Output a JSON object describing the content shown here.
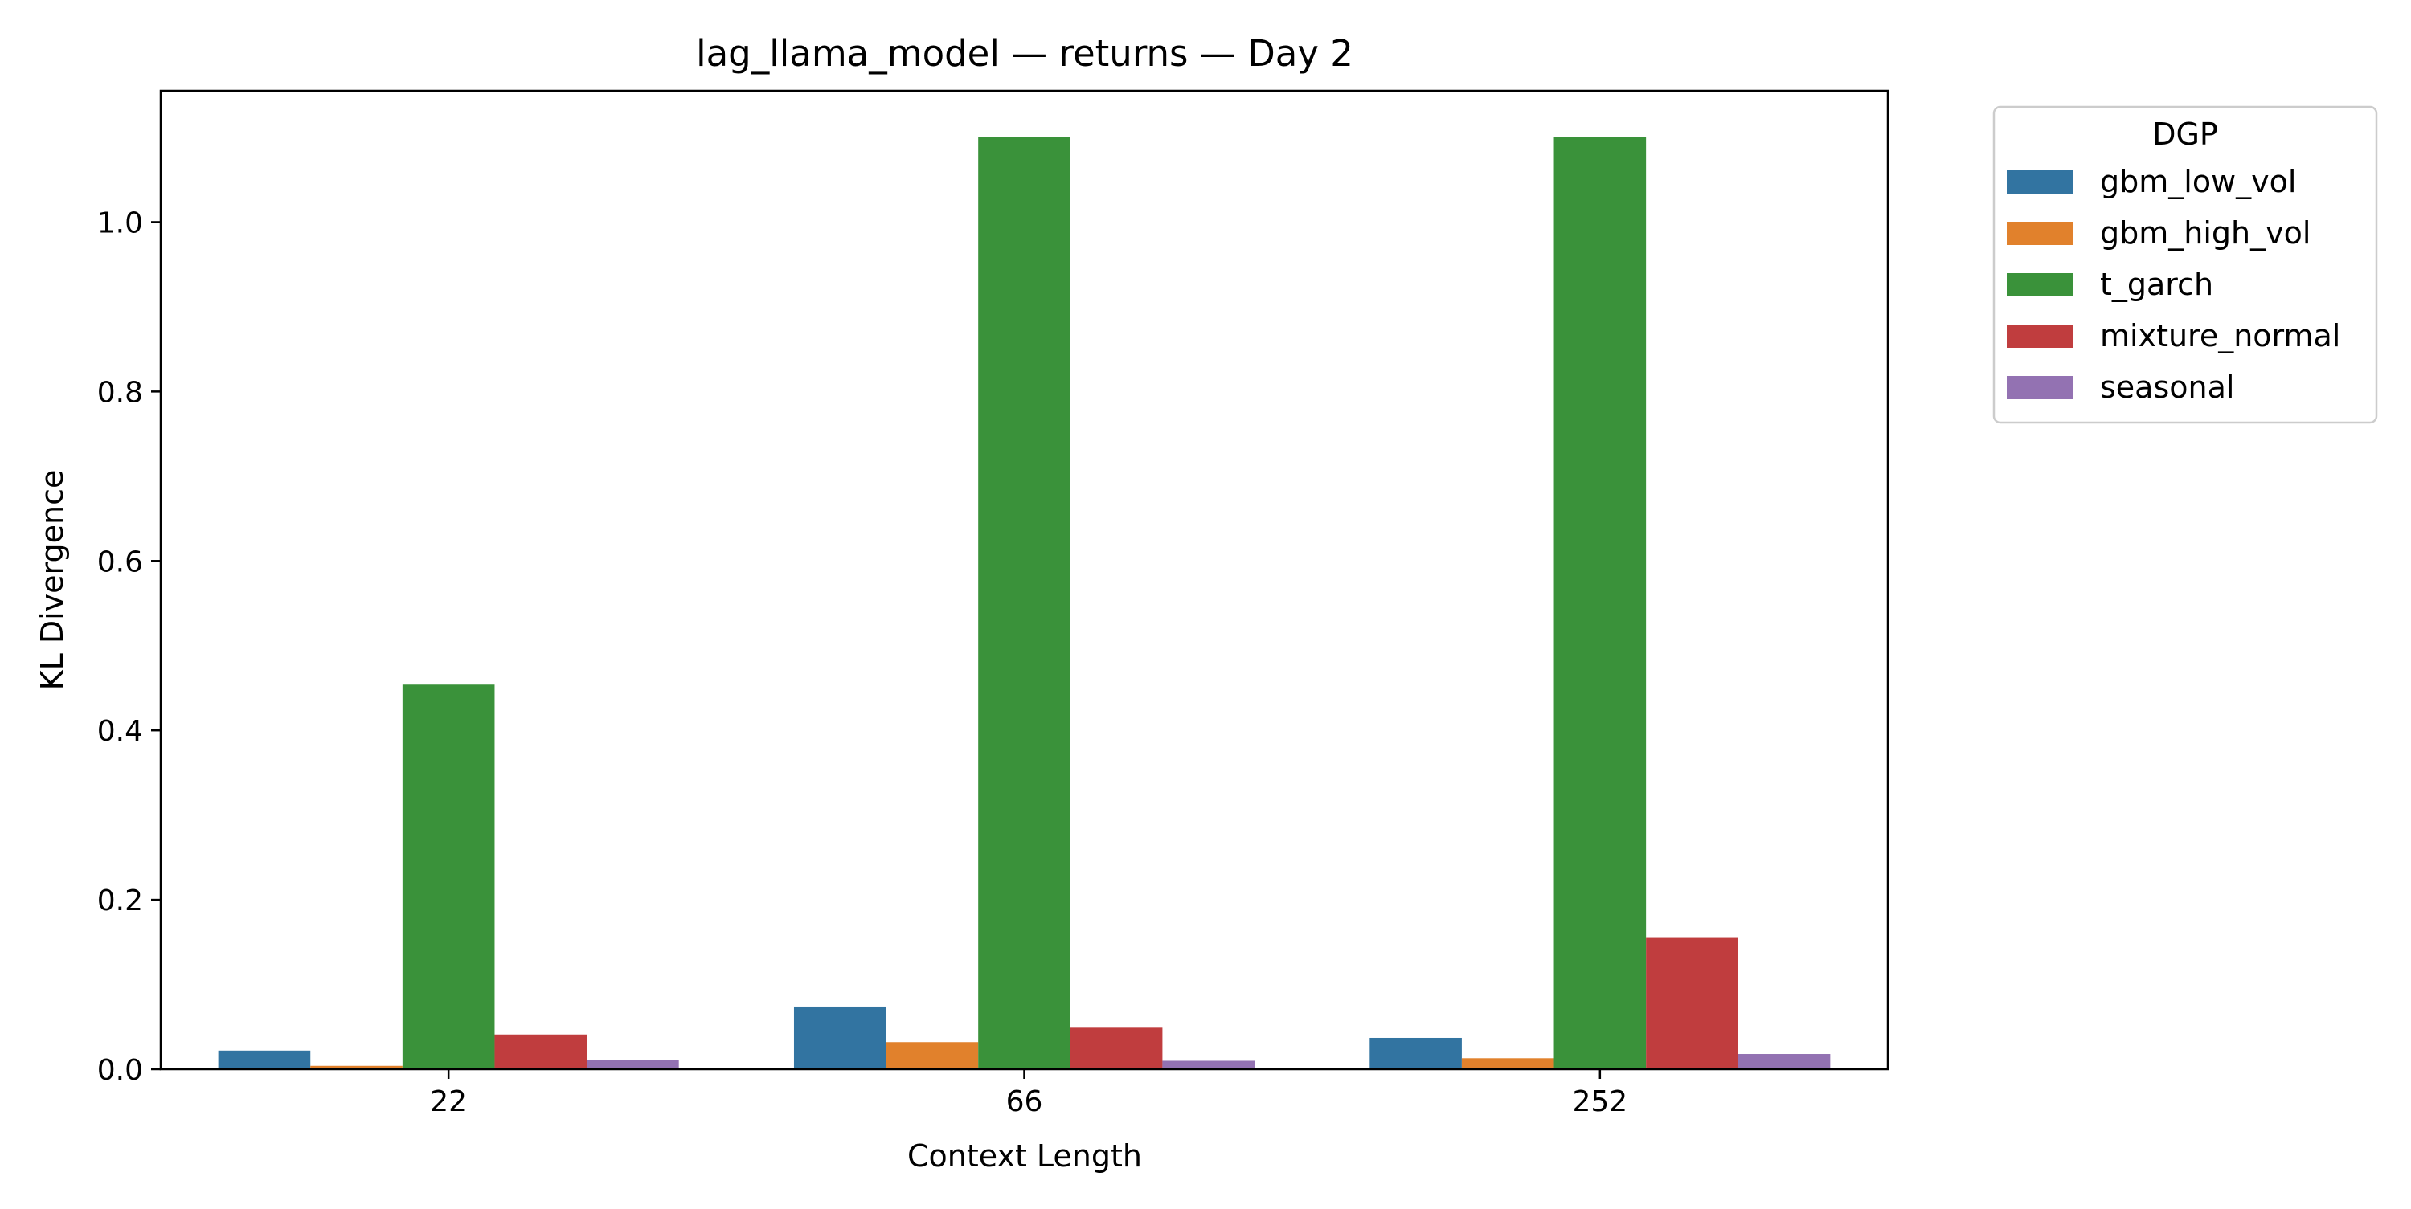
{
  "chart_data": {
    "type": "bar",
    "title": "lag_llama_model — returns — Day 2",
    "xlabel": "Context Length",
    "ylabel": "KL Divergence",
    "categories": [
      "22",
      "66",
      "252"
    ],
    "ylim": [
      0,
      1.155
    ],
    "yticks": [
      "0.0",
      "0.2",
      "0.4",
      "0.6",
      "0.8",
      "1.0"
    ],
    "grid": false,
    "legend": {
      "title": "DGP",
      "placement": "outside-upper-right"
    },
    "series": [
      {
        "name": "gbm_low_vol",
        "color": "#3274a1",
        "values": [
          0.022,
          0.074,
          0.037
        ]
      },
      {
        "name": "gbm_high_vol",
        "color": "#e1812c",
        "values": [
          0.004,
          0.032,
          0.013
        ]
      },
      {
        "name": "t_garch",
        "color": "#3a923a",
        "values": [
          0.454,
          1.1,
          1.1
        ]
      },
      {
        "name": "mixture_normal",
        "color": "#c03d3e",
        "values": [
          0.041,
          0.049,
          0.155
        ]
      },
      {
        "name": "seasonal",
        "color": "#9372b2",
        "values": [
          0.011,
          0.01,
          0.018
        ]
      }
    ]
  }
}
